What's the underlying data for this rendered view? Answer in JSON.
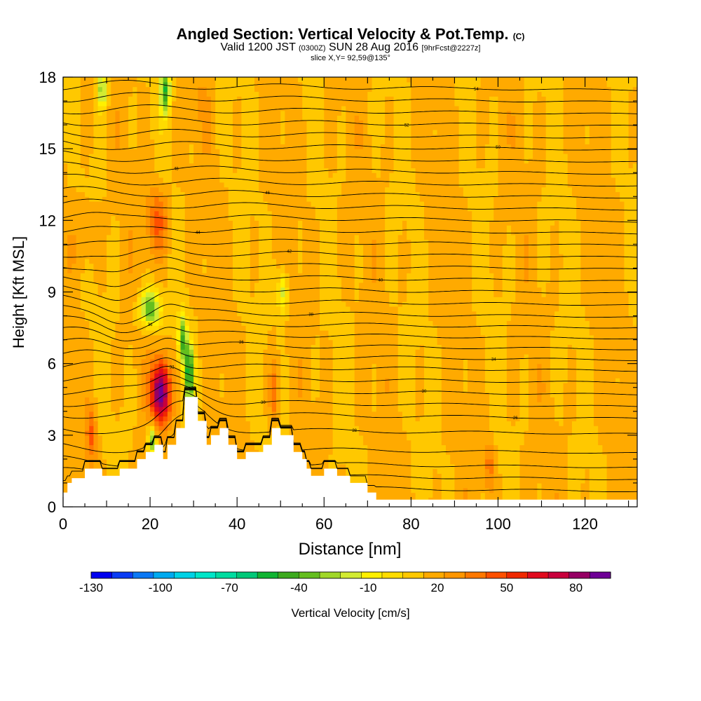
{
  "title": {
    "main": "Angled Section: Vertical Velocity & Pot.Temp.",
    "unit_tag": "(C)",
    "valid_prefix": "Valid 1200 JST",
    "valid_z": "(0300Z)",
    "valid_date": "SUN 28 Aug 2016",
    "fcst": "[9hrFcst@2227z]",
    "slice": "slice X,Y= 92,59@135°"
  },
  "chart_data": {
    "type": "heatmap",
    "xlabel": "Distance [nm]",
    "ylabel": "Height [Kft MSL]",
    "xlim": [
      0,
      132
    ],
    "ylim": [
      0,
      18
    ],
    "x_ticks": [
      0,
      20,
      40,
      60,
      80,
      100,
      120
    ],
    "y_ticks": [
      0,
      3,
      6,
      9,
      12,
      15,
      18
    ],
    "colorbar": {
      "label": "Vertical Velocity [cm/s]",
      "tick_labels": [
        -130,
        -100,
        -70,
        -40,
        -10,
        20,
        50,
        80
      ],
      "range": [
        -130,
        95
      ],
      "colors": [
        "#0000f0",
        "#0a3cf5",
        "#0a78f5",
        "#00aaf0",
        "#00d2e6",
        "#00e6c8",
        "#00dca0",
        "#00c878",
        "#10b432",
        "#3caa1e",
        "#64be1e",
        "#a0d728",
        "#d2eb32",
        "#fff000",
        "#ffdc00",
        "#ffc800",
        "#ffaa00",
        "#ff9600",
        "#ff7800",
        "#ff5000",
        "#f02800",
        "#e10a1e",
        "#c8003c",
        "#960064",
        "#6e0096"
      ]
    },
    "terrain": {
      "x": [
        0,
        1,
        1,
        2,
        2,
        5,
        5,
        9,
        9,
        13,
        13,
        17,
        17,
        19,
        19,
        21,
        21,
        23,
        23,
        24,
        24,
        26,
        26,
        28,
        28,
        31,
        31,
        33,
        33,
        34,
        34,
        36,
        36,
        38,
        38,
        40,
        40,
        42,
        42,
        46,
        46,
        48,
        48,
        50,
        50,
        53,
        53,
        55,
        55,
        56,
        56,
        57,
        57,
        60,
        60,
        63,
        63,
        66,
        66,
        70,
        70,
        72,
        72,
        132
      ],
      "height": [
        0.6,
        0.6,
        1.0,
        1.0,
        1.2,
        1.2,
        1.6,
        1.6,
        1.3,
        1.3,
        1.6,
        1.6,
        2.0,
        2.0,
        2.3,
        2.3,
        2.6,
        2.6,
        2.0,
        2.0,
        2.6,
        2.6,
        3.3,
        3.3,
        4.6,
        4.6,
        3.6,
        3.6,
        2.6,
        2.6,
        3.0,
        3.0,
        3.3,
        3.3,
        2.6,
        2.6,
        2.0,
        2.0,
        2.3,
        2.3,
        2.6,
        2.6,
        3.3,
        3.3,
        3.0,
        3.0,
        2.3,
        2.3,
        2.0,
        2.0,
        1.6,
        1.6,
        1.3,
        1.3,
        1.6,
        1.6,
        1.3,
        1.3,
        1.0,
        1.0,
        0.6,
        0.6,
        0.3,
        0.3
      ]
    },
    "updrafts": [
      {
        "x": 22.5,
        "z": 4.8,
        "sx": 2.2,
        "sz": 1.3,
        "w": 95
      },
      {
        "x": 21.8,
        "z": 12.0,
        "sx": 2.5,
        "sz": 1.4,
        "w": 45
      },
      {
        "x": 6.5,
        "z": 3.0,
        "sx": 1.2,
        "sz": 1.2,
        "w": 42
      },
      {
        "x": 48.5,
        "z": 4.8,
        "sx": 1.0,
        "sz": 1.4,
        "w": 40
      },
      {
        "x": 98.0,
        "z": 1.8,
        "sx": 1.1,
        "sz": 1.0,
        "w": 38
      },
      {
        "x": 5.0,
        "z": 11.3,
        "sx": 3.0,
        "sz": 1.6,
        "w": 25
      },
      {
        "x": 6.0,
        "z": 17.0,
        "sx": 2.5,
        "sz": 1.5,
        "w": 20
      },
      {
        "x": 31.5,
        "z": 17.0,
        "sx": 3.0,
        "sz": 1.5,
        "w": 20
      }
    ],
    "downdrafts": [
      {
        "x": 29.0,
        "z": 5.6,
        "sx": 1.0,
        "sz": 1.2,
        "w": -55
      },
      {
        "x": 27.5,
        "z": 7.0,
        "sx": 1.0,
        "sz": 1.0,
        "w": -40
      },
      {
        "x": 20.0,
        "z": 8.3,
        "sx": 2.5,
        "sz": 0.8,
        "w": -40
      },
      {
        "x": 23.5,
        "z": 17.5,
        "sx": 1.2,
        "sz": 1.0,
        "w": -45
      },
      {
        "x": 9.0,
        "z": 17.5,
        "sx": 1.2,
        "sz": 0.8,
        "w": -30
      },
      {
        "x": 20.5,
        "z": 2.8,
        "sx": 1.0,
        "sz": 0.6,
        "w": -40
      },
      {
        "x": 50.5,
        "z": 9.0,
        "sx": 1.2,
        "sz": 1.0,
        "w": -20
      }
    ],
    "theta_contours": [
      {
        "base": 0.9,
        "label": ""
      },
      {
        "base": 1.4,
        "label": ""
      },
      {
        "base": 1.9,
        "label": ""
      },
      {
        "base": 2.5,
        "label": "28"
      },
      {
        "base": 3.3,
        "label": "28"
      },
      {
        "base": 3.95,
        "label": "26"
      },
      {
        "base": 4.45,
        "label": "30"
      },
      {
        "base": 4.95,
        "label": "30"
      },
      {
        "base": 5.45,
        "label": "32"
      },
      {
        "base": 5.95,
        "label": ""
      },
      {
        "base": 6.4,
        "label": "34"
      },
      {
        "base": 6.85,
        "label": "36"
      },
      {
        "base": 7.3,
        "label": ""
      },
      {
        "base": 7.75,
        "label": "36"
      },
      {
        "base": 8.2,
        "label": "38"
      },
      {
        "base": 8.7,
        "label": ""
      },
      {
        "base": 9.2,
        "label": ""
      },
      {
        "base": 9.7,
        "label": "40"
      },
      {
        "base": 10.2,
        "label": ""
      },
      {
        "base": 10.7,
        "label": "42"
      },
      {
        "base": 11.2,
        "label": ""
      },
      {
        "base": 11.7,
        "label": "44"
      },
      {
        "base": 12.2,
        "label": ""
      },
      {
        "base": 12.7,
        "label": ""
      },
      {
        "base": 13.2,
        "label": "46"
      },
      {
        "base": 13.7,
        "label": ""
      },
      {
        "base": 14.2,
        "label": "48"
      },
      {
        "base": 14.7,
        "label": ""
      },
      {
        "base": 15.2,
        "label": "50"
      },
      {
        "base": 15.7,
        "label": ""
      },
      {
        "base": 16.2,
        "label": "52"
      },
      {
        "base": 16.7,
        "label": ""
      },
      {
        "base": 17.2,
        "label": ""
      },
      {
        "base": 17.7,
        "label": "54"
      }
    ]
  }
}
